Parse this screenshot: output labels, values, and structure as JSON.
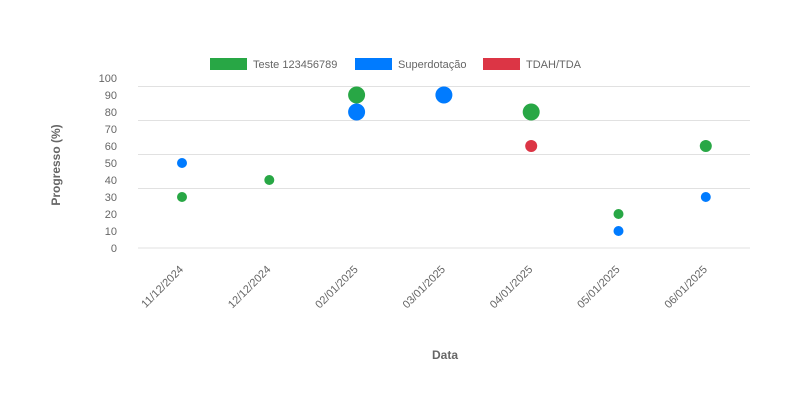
{
  "chart_data": {
    "type": "scatter",
    "xlabel": "Data",
    "ylabel": "Progresso (%)",
    "ylim": [
      0,
      100
    ],
    "yticks": [
      0,
      10,
      20,
      30,
      40,
      50,
      60,
      70,
      80,
      90,
      100
    ],
    "gridlines_at": [
      0,
      35,
      55,
      75,
      95
    ],
    "categories": [
      "11/12/2024",
      "12/12/2024",
      "02/01/2025",
      "03/01/2025",
      "04/01/2025",
      "05/01/2025",
      "06/01/2025"
    ],
    "series": [
      {
        "name": "Teste 123456789",
        "color": "#28a745",
        "points": [
          {
            "x": "11/12/2024",
            "y": 30,
            "size": "small"
          },
          {
            "x": "12/12/2024",
            "y": 40,
            "size": "small"
          },
          {
            "x": "02/01/2025",
            "y": 90,
            "size": "large"
          },
          {
            "x": "04/01/2025",
            "y": 80,
            "size": "large"
          },
          {
            "x": "05/01/2025",
            "y": 20,
            "size": "small"
          },
          {
            "x": "06/01/2025",
            "y": 60,
            "size": "medium"
          }
        ]
      },
      {
        "name": "Superdotação",
        "color": "#007bff",
        "points": [
          {
            "x": "11/12/2024",
            "y": 50,
            "size": "small"
          },
          {
            "x": "02/01/2025",
            "y": 80,
            "size": "large"
          },
          {
            "x": "03/01/2025",
            "y": 90,
            "size": "large"
          },
          {
            "x": "05/01/2025",
            "y": 10,
            "size": "small"
          },
          {
            "x": "06/01/2025",
            "y": 30,
            "size": "small"
          }
        ]
      },
      {
        "name": "TDAH/TDA",
        "color": "#dc3545",
        "points": [
          {
            "x": "04/01/2025",
            "y": 60,
            "size": "medium"
          }
        ]
      }
    ],
    "legend_position": "top-center"
  }
}
